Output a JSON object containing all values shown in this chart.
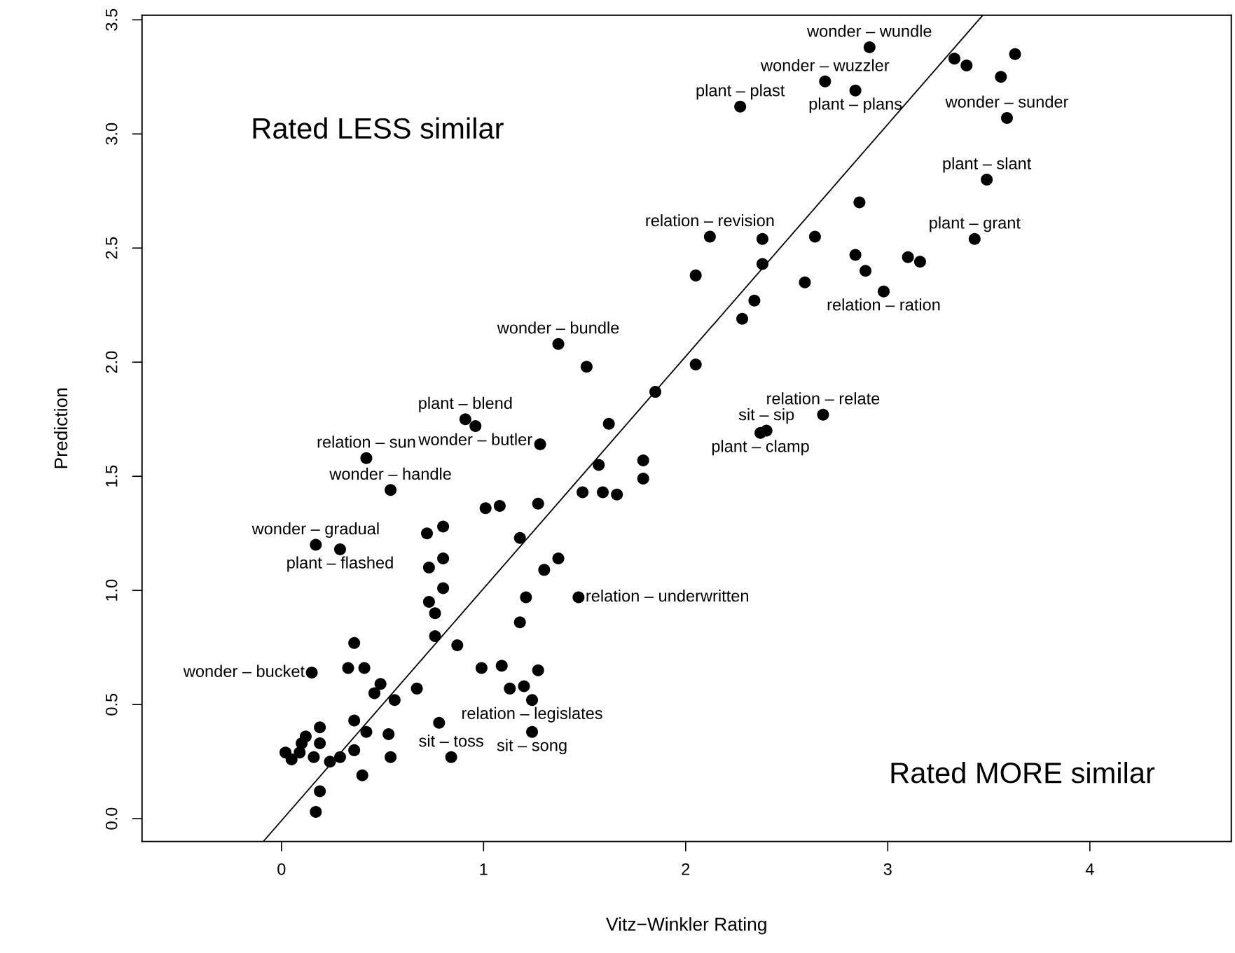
{
  "chart_data": {
    "type": "scatter",
    "xlabel": "Vitz−Winkler Rating",
    "ylabel": "Prediction",
    "xlim": [
      -0.69,
      4.7
    ],
    "ylim": [
      -0.1,
      3.52
    ],
    "xticks": [
      0,
      1,
      2,
      3,
      4
    ],
    "yticks": [
      {
        "value": 0,
        "label": "0.0"
      },
      {
        "value": 0.5,
        "label": "0.5"
      },
      {
        "value": 1,
        "label": "1.0"
      },
      {
        "value": 1.5,
        "label": "1.5"
      },
      {
        "value": 2,
        "label": "2.0"
      },
      {
        "value": 2.5,
        "label": "2.5"
      },
      {
        "value": 3,
        "label": "3.0"
      },
      {
        "value": 3.5,
        "label": "3.5"
      }
    ],
    "grid": false,
    "series": [
      {
        "marker": "circle",
        "color": "#000000",
        "x": [
          2.91,
          2.69,
          2.84,
          2.27,
          3.59,
          3.49,
          3.43,
          2.12,
          2.98,
          1.37,
          0.91,
          0.96,
          2.68,
          2.37,
          2.4,
          0.42,
          0.54,
          0.17,
          0.29,
          1.47,
          0.15,
          1.24,
          1.24,
          0.84,
          3.33,
          3.39,
          3.63,
          3.56,
          2.86,
          2.38,
          2.64,
          2.84,
          3.1,
          3.16,
          2.89,
          2.38,
          2.05,
          2.59,
          2.34,
          2.28,
          2.05,
          1.51,
          1.85,
          1.62,
          1.28,
          1.79,
          1.57,
          1.79,
          1.49,
          1.59,
          1.66,
          1.27,
          1.01,
          1.08,
          0.8,
          0.72,
          1.18,
          0.8,
          1.37,
          0.73,
          1.3,
          0.8,
          1.21,
          0.73,
          0.76,
          1.18,
          0.76,
          0.36,
          0.87,
          0.33,
          0.41,
          0.99,
          1.09,
          1.27,
          0.49,
          0.67,
          0.46,
          0.56,
          1.13,
          1.2,
          0.78,
          0.36,
          0.42,
          0.53,
          0.19,
          0.12,
          0.1,
          0.19,
          0.02,
          0.05,
          0.16,
          0.09,
          0.24,
          0.29,
          0.36,
          0.4,
          0.19,
          0.17,
          0.54
        ],
        "values": [
          3.38,
          3.23,
          3.19,
          3.12,
          3.07,
          2.8,
          2.54,
          2.55,
          2.31,
          2.08,
          1.75,
          1.72,
          1.77,
          1.69,
          1.7,
          1.58,
          1.44,
          1.2,
          1.18,
          0.97,
          0.64,
          0.52,
          0.38,
          0.27,
          3.33,
          3.3,
          3.35,
          3.25,
          2.7,
          2.54,
          2.55,
          2.47,
          2.46,
          2.44,
          2.4,
          2.43,
          2.38,
          2.35,
          2.27,
          2.19,
          1.99,
          1.98,
          1.87,
          1.73,
          1.64,
          1.57,
          1.55,
          1.49,
          1.43,
          1.43,
          1.42,
          1.38,
          1.36,
          1.37,
          1.28,
          1.25,
          1.23,
          1.14,
          1.14,
          1.1,
          1.09,
          1.01,
          0.97,
          0.95,
          0.9,
          0.86,
          0.8,
          0.77,
          0.76,
          0.66,
          0.66,
          0.66,
          0.67,
          0.65,
          0.59,
          0.57,
          0.55,
          0.52,
          0.57,
          0.58,
          0.42,
          0.43,
          0.38,
          0.37,
          0.4,
          0.36,
          0.33,
          0.33,
          0.29,
          0.26,
          0.27,
          0.29,
          0.25,
          0.27,
          0.3,
          0.19,
          0.12,
          0.03,
          0.27
        ]
      },
      {
        "type": "line",
        "color": "#000000",
        "x": [
          -0.09,
          3.47
        ],
        "values": [
          -0.1,
          3.52
        ]
      }
    ],
    "annotations": [
      "Rated LESS similar",
      "Rated MORE similar",
      {
        "text": "wonder – wundle",
        "x": 2.91,
        "y": 3.38
      },
      {
        "text": "wonder – wuzzler",
        "x": 2.69,
        "y": 3.23
      },
      {
        "text": "plant – plans",
        "x": 2.84,
        "y": 3.19
      },
      {
        "text": "plant – plast",
        "x": 2.27,
        "y": 3.12
      },
      {
        "text": "wonder – sunder",
        "x": 3.59,
        "y": 3.07
      },
      {
        "text": "plant – slant",
        "x": 3.49,
        "y": 2.8
      },
      {
        "text": "plant – grant",
        "x": 3.43,
        "y": 2.54
      },
      {
        "text": "relation – revision",
        "x": 2.12,
        "y": 2.55
      },
      {
        "text": "relation – ration",
        "x": 2.98,
        "y": 2.31
      },
      {
        "text": "wonder – bundle",
        "x": 1.37,
        "y": 2.08
      },
      {
        "text": "plant – blend",
        "x": 0.91,
        "y": 1.75
      },
      {
        "text": "wonder – butler",
        "x": 0.96,
        "y": 1.72
      },
      {
        "text": "relation – relate",
        "x": 2.68,
        "y": 1.77
      },
      {
        "text": "plant – clamp",
        "x": 2.37,
        "y": 1.69
      },
      {
        "text": "sit – sip",
        "x": 2.4,
        "y": 1.7
      },
      {
        "text": "relation – sun",
        "x": 0.42,
        "y": 1.58
      },
      {
        "text": "wonder – handle",
        "x": 0.54,
        "y": 1.44
      },
      {
        "text": "wonder – gradual",
        "x": 0.17,
        "y": 1.2
      },
      {
        "text": "plant – flashed",
        "x": 0.29,
        "y": 1.18
      },
      {
        "text": "relation – underwritten",
        "x": 1.47,
        "y": 0.97
      },
      {
        "text": "wonder – bucket",
        "x": 0.15,
        "y": 0.64
      },
      {
        "text": "relation – legislates",
        "x": 1.24,
        "y": 0.52
      },
      {
        "text": "sit – song",
        "x": 1.24,
        "y": 0.38
      },
      {
        "text": "sit – toss",
        "x": 0.84,
        "y": 0.27
      }
    ]
  }
}
